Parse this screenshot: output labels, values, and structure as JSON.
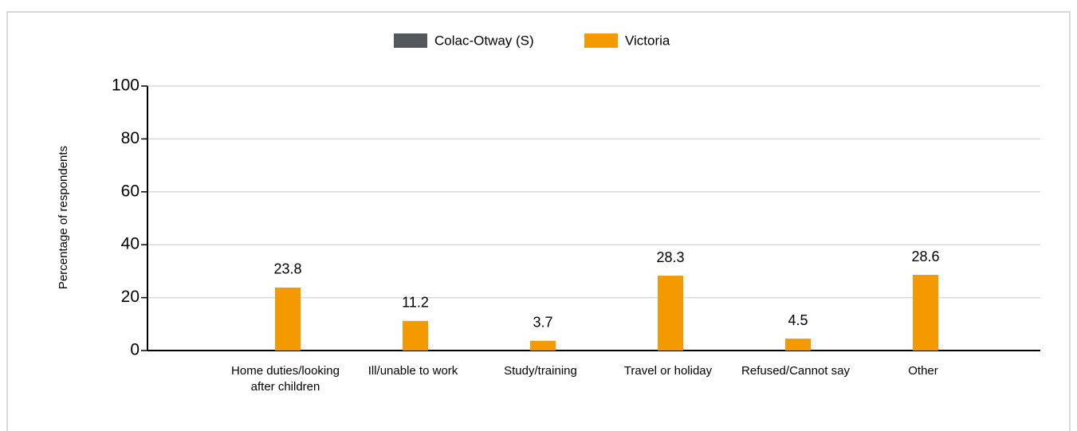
{
  "chart_data": {
    "type": "bar",
    "categories": [
      "Home duties/looking after children",
      "Ill/unable to work",
      "Study/training",
      "Travel or holiday",
      "Refused/Cannot say",
      "Other"
    ],
    "series": [
      {
        "name": "Colac-Otway (S)",
        "color": "#54585d",
        "values": [
          null,
          null,
          null,
          null,
          null,
          null
        ]
      },
      {
        "name": "Victoria",
        "color": "#f39a00",
        "values": [
          23.8,
          11.2,
          3.7,
          28.3,
          4.5,
          28.6
        ]
      }
    ],
    "y_label": "Percentage of respondents",
    "ylim": [
      0,
      100
    ],
    "yticks": [
      0,
      20,
      40,
      60,
      80,
      100
    ],
    "grid": true,
    "legend": "top"
  }
}
